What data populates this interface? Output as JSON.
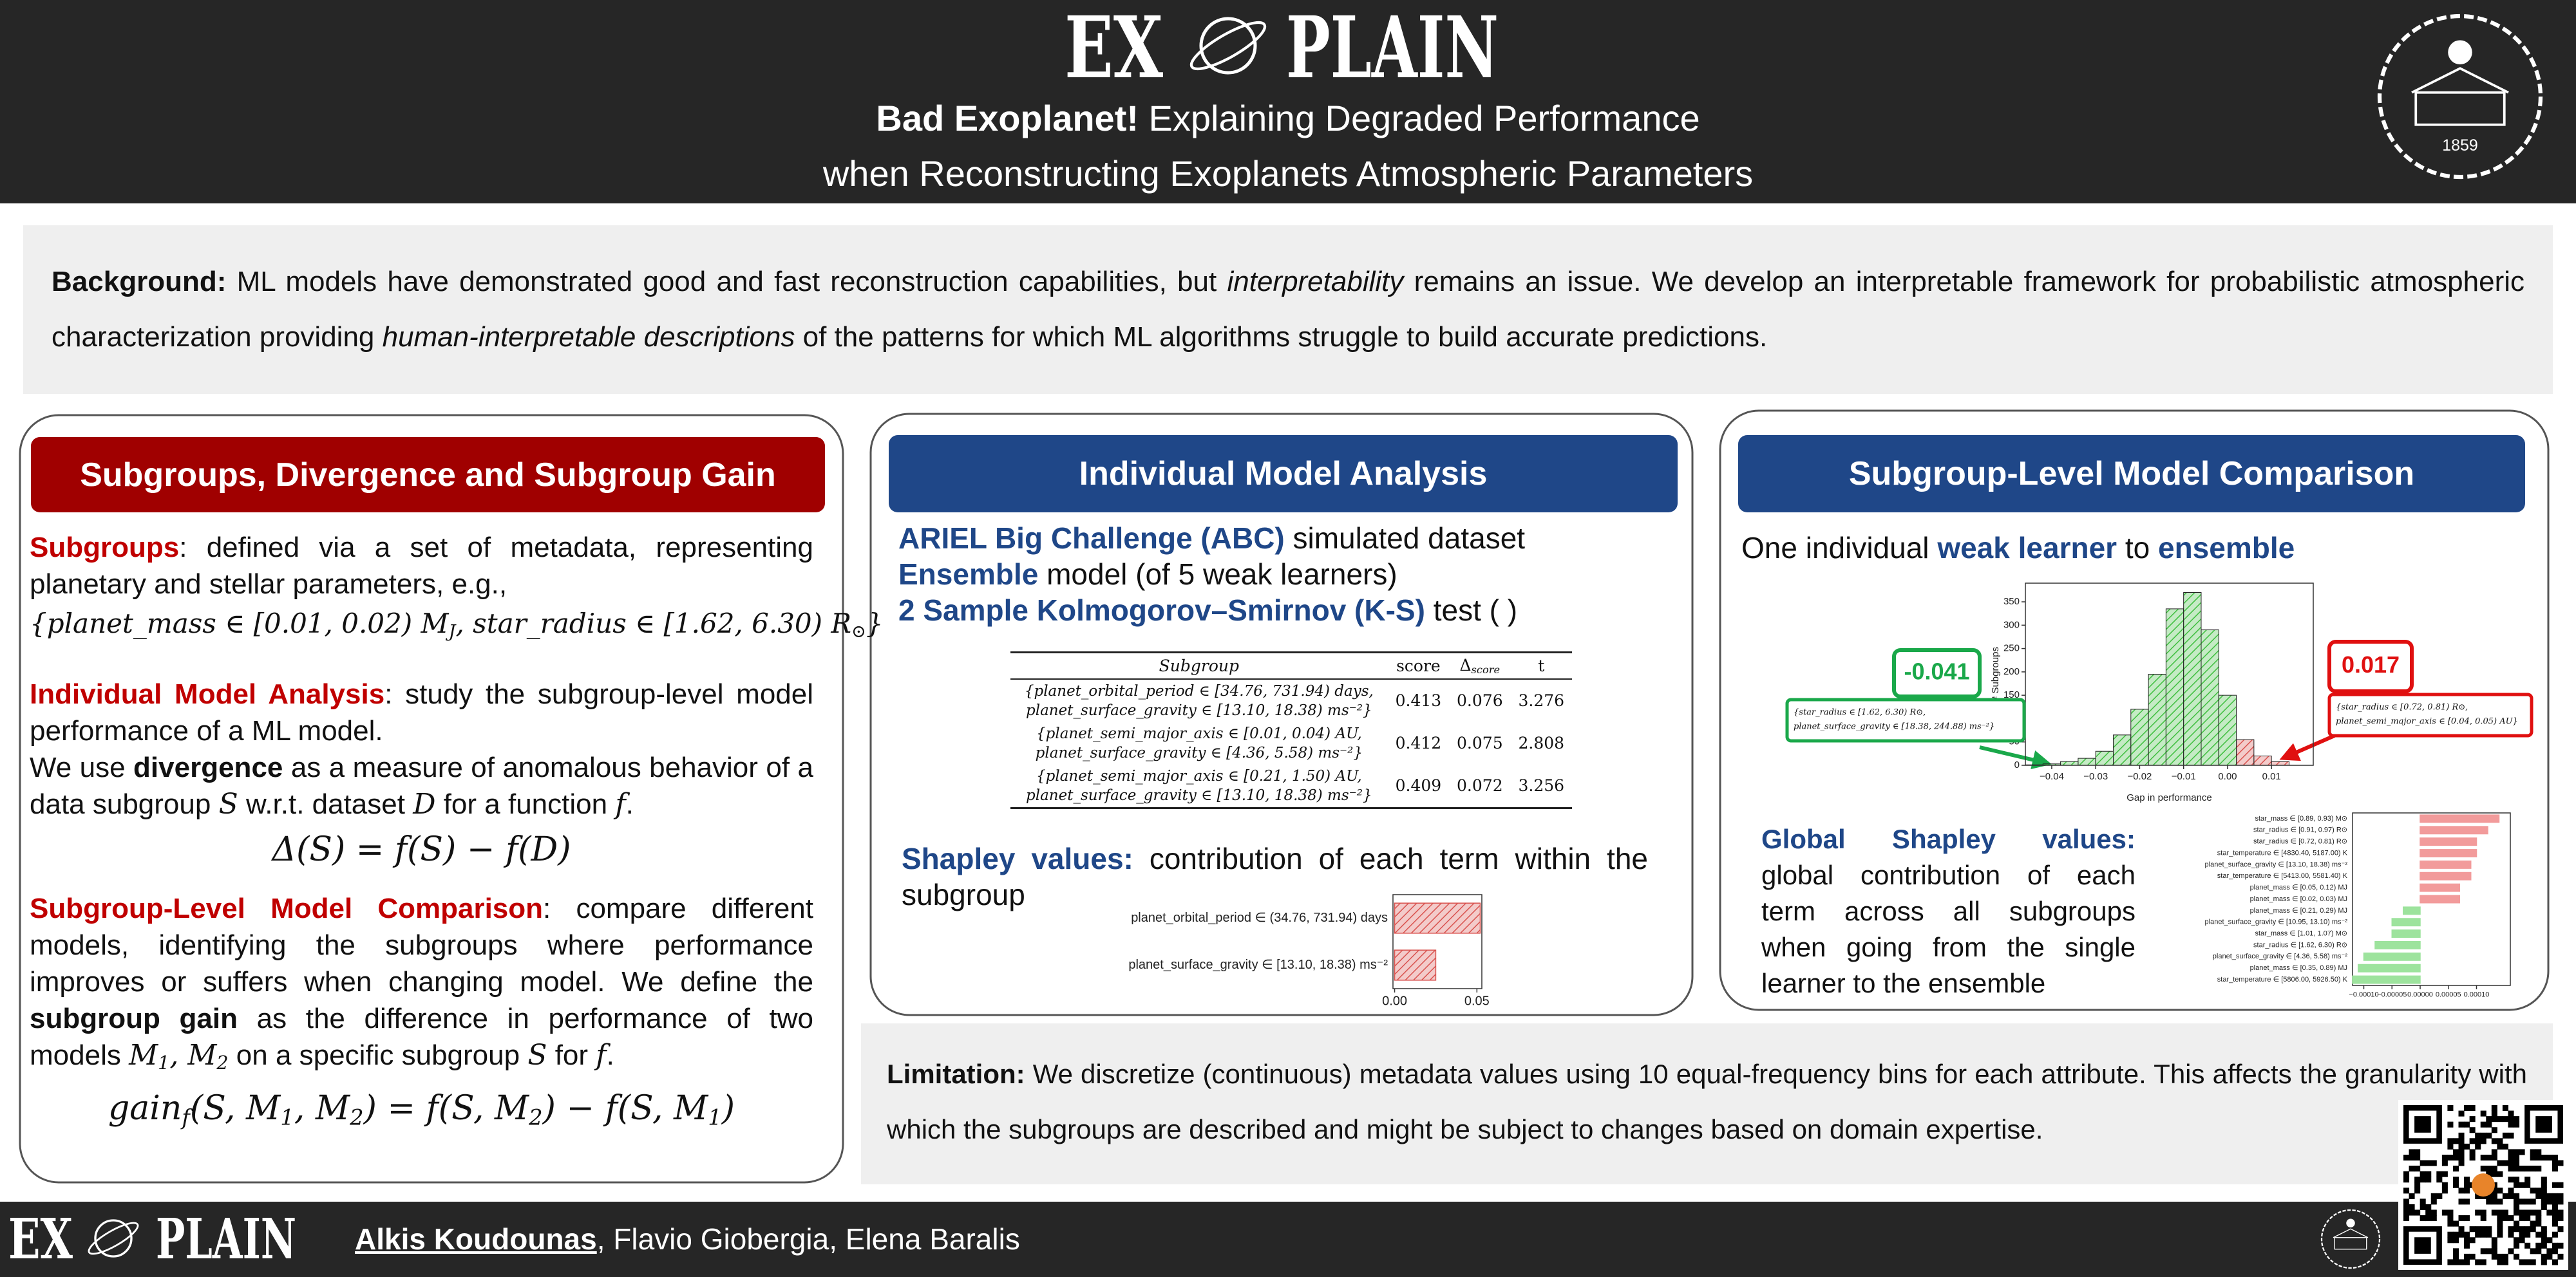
{
  "header": {
    "logo": [
      "EX",
      "PLAIN"
    ],
    "title": [
      {
        "text": "Bad Exoplanet!",
        "style": "b"
      },
      {
        "text": " Explaining Degraded Performance"
      }
    ],
    "subtitle": "when Reconstructing Exoplanets Atmospheric Parameters",
    "seal_year": "1859"
  },
  "background": [
    {
      "text": "Background:",
      "style": "b"
    },
    {
      "text": " ML models have demonstrated good and fast reconstruction capabilities, but "
    },
    {
      "text": "interpretability",
      "style": "i"
    },
    {
      "text": " remains an issue. We develop an interpretable framework for probabilistic atmospheric characterization providing "
    },
    {
      "text": "human-interpretable descriptions",
      "style": "i"
    },
    {
      "text": " of the patterns for which ML algorithms struggle to build accurate predictions."
    }
  ],
  "subgroups_panel": {
    "heading": "Subgroups, Divergence and Subgroup Gain",
    "blocks": [
      {
        "style": "p",
        "segments": [
          {
            "text": "Subgroups",
            "style": "red"
          },
          {
            "text": ": defined via a set of metadata, representing planetary and stellar parameters, e.g.,"
          }
        ]
      },
      {
        "style": "formula small",
        "segments": [
          {
            "text": "{planet_mass ∈ [0.01, 0.02) M",
            "style": "m"
          },
          {
            "text": "J",
            "style": "m sub"
          },
          {
            "text": ", star_radius ∈ [1.62, 6.30) R",
            "style": "m"
          },
          {
            "text": "⊙",
            "style": "m sub"
          },
          {
            "text": "}",
            "style": "m"
          }
        ]
      },
      {
        "style": "p",
        "segments": [
          {
            "text": "Individual Model Analysis",
            "style": "red"
          },
          {
            "text": ": study the subgroup-level model performance of a ML model."
          }
        ]
      },
      {
        "style": "p",
        "segments": [
          {
            "text": "We use "
          },
          {
            "text": "divergence",
            "style": "b"
          },
          {
            "text": " as a measure of anomalous behavior of a data subgroup "
          },
          {
            "text": "S",
            "style": "m"
          },
          {
            "text": " w.r.t. dataset "
          },
          {
            "text": "D",
            "style": "m"
          },
          {
            "text": " for a function "
          },
          {
            "text": "f",
            "style": "m"
          },
          {
            "text": "."
          }
        ]
      },
      {
        "style": "formula",
        "segments": [
          {
            "text": "Δ(S) = f(S) − f(D)",
            "style": "m"
          }
        ]
      },
      {
        "style": "p",
        "segments": [
          {
            "text": "Subgroup-Level Model Comparison",
            "style": "red"
          },
          {
            "text": ": compare different models, identifying the subgroups where performance improves or suffers when changing model. We define the "
          },
          {
            "text": "subgroup gain",
            "style": "b"
          },
          {
            "text": " as the difference in performance of two models "
          },
          {
            "text": "M",
            "style": "m"
          },
          {
            "text": "1",
            "style": "m sub"
          },
          {
            "text": ", M",
            "style": "m"
          },
          {
            "text": "2",
            "style": "m sub"
          },
          {
            "text": " on a specific subgroup "
          },
          {
            "text": "S",
            "style": "m"
          },
          {
            "text": " for "
          },
          {
            "text": "f",
            "style": "m"
          },
          {
            "text": "."
          }
        ]
      },
      {
        "style": "formula",
        "segments": [
          {
            "text": "gain",
            "style": "m"
          },
          {
            "text": "f",
            "style": "m sub"
          },
          {
            "text": "(S, M",
            "style": "m"
          },
          {
            "text": "1",
            "style": "m sub"
          },
          {
            "text": ", M",
            "style": "m"
          },
          {
            "text": "2",
            "style": "m sub"
          },
          {
            "text": ") = f(S, M",
            "style": "m"
          },
          {
            "text": "2",
            "style": "m sub"
          },
          {
            "text": ") − f(S, M",
            "style": "m"
          },
          {
            "text": "1",
            "style": "m sub"
          },
          {
            "text": ")",
            "style": "m"
          }
        ]
      }
    ]
  },
  "individual_panel": {
    "heading": "Individual Model Analysis",
    "lines": [
      [
        {
          "text": "ARIEL Big Challenge (ABC)",
          "style": "blue"
        },
        {
          "text": " simulated dataset"
        }
      ],
      [
        {
          "text": "Ensemble",
          "style": "blue"
        },
        {
          "text": " model (of 5 weak learners)"
        }
      ],
      [
        {
          "text": "2 Sample Kolmogorov–Smirnov (K-S)",
          "style": "blue"
        },
        {
          "text": " test (  )"
        }
      ]
    ],
    "table": {
      "header": [
        [
          {
            "text": "Subgroup",
            "style": "i"
          }
        ],
        [
          {
            "text": "score"
          }
        ],
        [
          {
            "text": "Δ"
          },
          {
            "text": "score",
            "style": "i sub"
          }
        ],
        [
          {
            "text": "t"
          }
        ]
      ],
      "rows": [
        {
          "subgroup": [
            "{planet_orbital_period ∈ [34.76, 731.94) days,",
            "planet_surface_gravity ∈ [13.10, 18.38) ms⁻²}"
          ],
          "score": 0.413,
          "delta": 0.076,
          "t": 3.276
        },
        {
          "subgroup": [
            "{planet_semi_major_axis ∈ [0.01, 0.04) AU,",
            "planet_surface_gravity ∈ [4.36, 5.58) ms⁻²}"
          ],
          "score": 0.412,
          "delta": 0.075,
          "t": 2.808
        },
        {
          "subgroup": [
            "{planet_semi_major_axis ∈ [0.21, 1.50) AU,",
            "planet_surface_gravity ∈ [13.10, 18.38) ms⁻²}"
          ],
          "score": 0.409,
          "delta": 0.072,
          "t": 3.256
        }
      ]
    },
    "shapley_text": [
      {
        "text": "Shapley values:",
        "style": "blue"
      },
      {
        "text": " contribution of each term within the subgroup"
      }
    ],
    "shapley_chart": {
      "type": "bar",
      "orientation": "horizontal",
      "categories": [
        "planet_orbital_period ∈ (34.76, 731.94) days",
        "planet_surface_gravity ∈ [13.10, 18.38) ms⁻²"
      ],
      "values": [
        0.052,
        0.025
      ],
      "color": "#d9534f",
      "hatch": true,
      "xlim": [
        -0.001,
        0.053
      ],
      "xticks": [
        {
          "value": 0,
          "label": "0.00"
        },
        {
          "value": 0.05,
          "label": "0.05"
        }
      ]
    }
  },
  "comparison_panel": {
    "heading": "Subgroup-Level Model Comparison",
    "intro": [
      {
        "text": "One individual "
      },
      {
        "text": "weak learner",
        "style": "blue"
      },
      {
        "text": " to "
      },
      {
        "text": "ensemble",
        "style": "blue"
      }
    ],
    "histogram": {
      "type": "histogram",
      "bins": [
        -0.046,
        -0.042,
        -0.038,
        -0.034,
        -0.03,
        -0.026,
        -0.022,
        -0.018,
        -0.014,
        -0.01,
        -0.006,
        -0.002,
        0.002,
        0.006,
        0.01,
        0.014
      ],
      "values": [
        1,
        3,
        8,
        15,
        30,
        65,
        120,
        195,
        335,
        370,
        290,
        150,
        55,
        20,
        8
      ],
      "colors": [
        "#3fbf3f",
        "#3fbf3f",
        "#3fbf3f",
        "#3fbf3f",
        "#3fbf3f",
        "#3fbf3f",
        "#3fbf3f",
        "#3fbf3f",
        "#3fbf3f",
        "#3fbf3f",
        "#3fbf3f",
        "#3fbf3f",
        "#d9534f",
        "#d9534f",
        "#d9534f"
      ],
      "hatch": true,
      "xlim": [
        -0.046,
        0.0195
      ],
      "ylim": [
        0,
        390
      ],
      "xticks": [
        {
          "value": -0.04,
          "label": "−0.04"
        },
        {
          "value": -0.03,
          "label": "−0.03"
        },
        {
          "value": -0.02,
          "label": "−0.02"
        },
        {
          "value": -0.01,
          "label": "−0.01"
        },
        {
          "value": 0,
          "label": "0.00"
        },
        {
          "value": 0.01,
          "label": "0.01"
        }
      ],
      "yticks": [
        0,
        50,
        100,
        150,
        200,
        250,
        300,
        350
      ],
      "xlabel": "Gap in performance",
      "ylabel": "# Subgroups",
      "annotations": [
        {
          "label": "-0.041",
          "description": [
            "{star_radius ∈ [1.62, 6.30) R⊙,",
            "planet_surface_gravity ∈ [18.38, 244.88) ms⁻²}"
          ],
          "color": "#1aa84a"
        },
        {
          "label": "0.017",
          "description": [
            "{star_radius ∈ [0.72, 0.81) R⊙,",
            "planet_semi_major_axis ∈ [0.04, 0.05) AU}"
          ],
          "color": "#e01010"
        }
      ]
    },
    "global_text": [
      {
        "text": "Global Shapley values:",
        "style": "blue"
      },
      {
        "text": " global contribution of each term across all subgroups when going from the single learner to the ensemble"
      }
    ],
    "global_chart": {
      "type": "bar",
      "orientation": "horizontal",
      "categories": [
        "star_mass ∈ [0.89, 0.93) M⊙",
        "star_radius ∈ [0.91, 0.97) R⊙",
        "star_radius ∈ [0.72, 0.81) R⊙",
        "star_temperature ∈ [4830.40, 5187.00) K",
        "planet_surface_gravity ∈ [13.10, 18.38) ms⁻²",
        "star_temperature ∈ [5413.00, 5581.40) K",
        "planet_mass ∈ [0.05, 0.12) MJ",
        "planet_mass ∈ [0.02, 0.03) MJ",
        "planet_mass ∈ [0.21, 0.29) MJ",
        "planet_surface_gravity ∈ [10.95, 13.10) ms⁻²",
        "star_mass ∈ [1.01, 1.07) M⊙",
        "star_radius ∈ [1.62, 6.30) R⊙",
        "planet_surface_gravity ∈ [4.36, 5.58) ms⁻²",
        "planet_mass ∈ [0.35, 0.89) MJ",
        "star_temperature ∈ [5806.00, 5926.50) K"
      ],
      "values": [
        0.00014,
        0.00012,
        0.0001,
        0.0001,
        9e-05,
        9e-05,
        7e-05,
        7e-05,
        -3e-05,
        -5e-05,
        -5e-05,
        -8e-05,
        -0.0001,
        -0.00011,
        -0.00012
      ],
      "colors": [
        "#f29b9b",
        "#f29b9b",
        "#f29b9b",
        "#f29b9b",
        "#f29b9b",
        "#f29b9b",
        "#f29b9b",
        "#f29b9b",
        "#9de39d",
        "#9de39d",
        "#9de39d",
        "#9de39d",
        "#9de39d",
        "#9de39d",
        "#9de39d"
      ],
      "xlim": [
        -0.00012,
        0.00016
      ],
      "xticks": [
        {
          "value": -0.0001,
          "label": "−0.00010"
        },
        {
          "value": -5e-05,
          "label": "−0.00005"
        },
        {
          "value": 0,
          "label": "0.00000"
        },
        {
          "value": 5e-05,
          "label": "0.00005"
        },
        {
          "value": 0.0001,
          "label": "0.00010"
        }
      ]
    }
  },
  "limitation": [
    {
      "text": "Limitation:",
      "style": "b"
    },
    {
      "text": " We discretize (continuous) metadata values using 10 equal-frequency bins for each attribute. This affects the granularity with which the subgroups are described and might be subject to changes based on domain expertise."
    }
  ],
  "footer": {
    "logo": [
      "EX",
      "PLAIN"
    ],
    "authors": [
      {
        "text": "Alkis Koudounas",
        "style": "u"
      },
      {
        "text": ", Flavio Giobergia, Elena Baralis"
      }
    ]
  }
}
